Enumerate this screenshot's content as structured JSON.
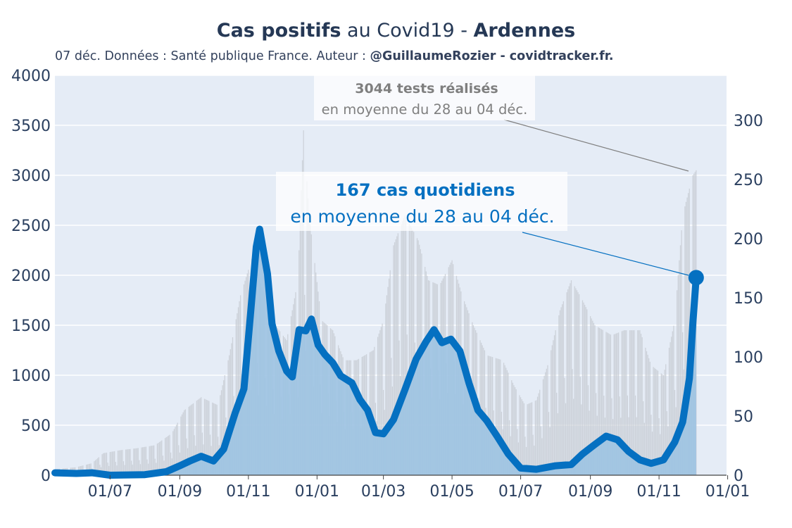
{
  "header": {
    "title_part1": "Cas positifs",
    "title_part2": " au Covid19 - ",
    "title_part3": "Ardennes",
    "subtitle_part1": "07 déc. Données : Santé publique France. Auteur : ",
    "subtitle_part2": "@GuillaumeRozier - covidtracker.fr."
  },
  "annotations": {
    "tests_bold": "3044 tests réalisés",
    "tests_text": "en moyenne du 28 au 04 déc.",
    "cases_bold": "167 cas quotidiens",
    "cases_text": "en moyenne du 28 au 04 déc."
  },
  "colors": {
    "plot_bg": "#e5ecf6",
    "cases_line": "#0570c1",
    "cases_fill": "#9dc3e2",
    "tests_bars": "#c8ccd4",
    "annotation_tests": "#7f7f7f",
    "annotation_cases": "#0570c1"
  },
  "chart_data": {
    "type": "area",
    "x_ticks": [
      "01/07",
      "01/09",
      "01/11",
      "01/01",
      "01/03",
      "01/05",
      "01/07",
      "01/09",
      "01/11",
      "01/01"
    ],
    "y_left": {
      "ticks": [
        "0",
        "500",
        "1000",
        "1500",
        "2000",
        "2500",
        "3000",
        "3500",
        "4000"
      ],
      "range": [
        0,
        4000
      ]
    },
    "y_right": {
      "ticks": [
        "0",
        "50",
        "100",
        "150",
        "200",
        "250",
        "300"
      ],
      "range": [
        0,
        338
      ]
    },
    "grid": true,
    "x_start": "2020-05-13",
    "x_end": "2021-12-31",
    "series": [
      {
        "axis": "left",
        "type": "bar",
        "points": [
          [
            "2020-05-13",
            60
          ],
          [
            "2020-06-01",
            80
          ],
          [
            "2020-06-15",
            120
          ],
          [
            "2020-06-25",
            220
          ],
          [
            "2020-07-10",
            250
          ],
          [
            "2020-07-25",
            270
          ],
          [
            "2020-08-10",
            300
          ],
          [
            "2020-08-25",
            420
          ],
          [
            "2020-09-05",
            650
          ],
          [
            "2020-09-20",
            780
          ],
          [
            "2020-10-05",
            700
          ],
          [
            "2020-10-15",
            1200
          ],
          [
            "2020-10-25",
            1800
          ],
          [
            "2020-11-05",
            2200
          ],
          [
            "2020-11-15",
            1800
          ],
          [
            "2020-11-25",
            1500
          ],
          [
            "2020-12-05",
            1350
          ],
          [
            "2020-12-15",
            1950
          ],
          [
            "2020-12-20",
            3450
          ],
          [
            "2020-12-25",
            2600
          ],
          [
            "2021-01-05",
            1550
          ],
          [
            "2021-01-15",
            1450
          ],
          [
            "2021-01-25",
            1150
          ],
          [
            "2021-02-05",
            1150
          ],
          [
            "2021-02-20",
            1250
          ],
          [
            "2021-03-01",
            1550
          ],
          [
            "2021-03-10",
            2300
          ],
          [
            "2021-03-20",
            2600
          ],
          [
            "2021-04-01",
            2350
          ],
          [
            "2021-04-10",
            1950
          ],
          [
            "2021-04-20",
            1900
          ],
          [
            "2021-05-01",
            2150
          ],
          [
            "2021-05-10",
            1800
          ],
          [
            "2021-05-20",
            1500
          ],
          [
            "2021-06-01",
            1200
          ],
          [
            "2021-06-15",
            1150
          ],
          [
            "2021-06-25",
            900
          ],
          [
            "2021-07-05",
            700
          ],
          [
            "2021-07-15",
            750
          ],
          [
            "2021-07-25",
            1100
          ],
          [
            "2021-08-05",
            1650
          ],
          [
            "2021-08-15",
            1950
          ],
          [
            "2021-08-25",
            1750
          ],
          [
            "2021-09-05",
            1500
          ],
          [
            "2021-09-20",
            1400
          ],
          [
            "2021-10-01",
            1450
          ],
          [
            "2021-10-15",
            1450
          ],
          [
            "2021-10-25",
            1100
          ],
          [
            "2021-11-05",
            1000
          ],
          [
            "2021-11-15",
            1550
          ],
          [
            "2021-11-22",
            2600
          ],
          [
            "2021-12-01",
            3000
          ],
          [
            "2021-12-04",
            3050
          ]
        ]
      },
      {
        "axis": "right",
        "type": "line",
        "points": [
          [
            "2020-05-13",
            2
          ],
          [
            "2020-06-01",
            1.5
          ],
          [
            "2020-06-15",
            2
          ],
          [
            "2020-07-01",
            0
          ],
          [
            "2020-08-01",
            0.5
          ],
          [
            "2020-08-20",
            3
          ],
          [
            "2020-09-01",
            8
          ],
          [
            "2020-09-10",
            12
          ],
          [
            "2020-09-20",
            16
          ],
          [
            "2020-10-01",
            12
          ],
          [
            "2020-10-10",
            22
          ],
          [
            "2020-10-20",
            52
          ],
          [
            "2020-10-28",
            73
          ],
          [
            "2020-11-03",
            138
          ],
          [
            "2020-11-08",
            193
          ],
          [
            "2020-11-11",
            208
          ],
          [
            "2020-11-18",
            170
          ],
          [
            "2020-11-22",
            128
          ],
          [
            "2020-11-28",
            105
          ],
          [
            "2020-12-05",
            88
          ],
          [
            "2020-12-10",
            83
          ],
          [
            "2020-12-16",
            123
          ],
          [
            "2020-12-22",
            122
          ],
          [
            "2020-12-27",
            132
          ],
          [
            "2021-01-02",
            110
          ],
          [
            "2021-01-08",
            102
          ],
          [
            "2021-01-15",
            95
          ],
          [
            "2021-01-22",
            84
          ],
          [
            "2021-02-01",
            78
          ],
          [
            "2021-02-08",
            64
          ],
          [
            "2021-02-15",
            55
          ],
          [
            "2021-02-22",
            36
          ],
          [
            "2021-03-01",
            35
          ],
          [
            "2021-03-10",
            47
          ],
          [
            "2021-03-20",
            72
          ],
          [
            "2021-03-30",
            98
          ],
          [
            "2021-04-08",
            113
          ],
          [
            "2021-04-15",
            123
          ],
          [
            "2021-04-22",
            112
          ],
          [
            "2021-04-30",
            115
          ],
          [
            "2021-05-08",
            105
          ],
          [
            "2021-05-16",
            78
          ],
          [
            "2021-05-24",
            55
          ],
          [
            "2021-06-01",
            46
          ],
          [
            "2021-06-10",
            33
          ],
          [
            "2021-06-20",
            18
          ],
          [
            "2021-07-01",
            6
          ],
          [
            "2021-07-15",
            5
          ],
          [
            "2021-08-01",
            8
          ],
          [
            "2021-08-15",
            9
          ],
          [
            "2021-08-25",
            18
          ],
          [
            "2021-09-05",
            26
          ],
          [
            "2021-09-15",
            33
          ],
          [
            "2021-09-25",
            30
          ],
          [
            "2021-10-05",
            20
          ],
          [
            "2021-10-15",
            13
          ],
          [
            "2021-10-25",
            10
          ],
          [
            "2021-11-05",
            13
          ],
          [
            "2021-11-15",
            28
          ],
          [
            "2021-11-22",
            45
          ],
          [
            "2021-11-28",
            82
          ],
          [
            "2021-12-01",
            128
          ],
          [
            "2021-12-04",
            167
          ]
        ]
      }
    ],
    "highlight": {
      "date": "2021-12-04",
      "value": 167
    }
  }
}
